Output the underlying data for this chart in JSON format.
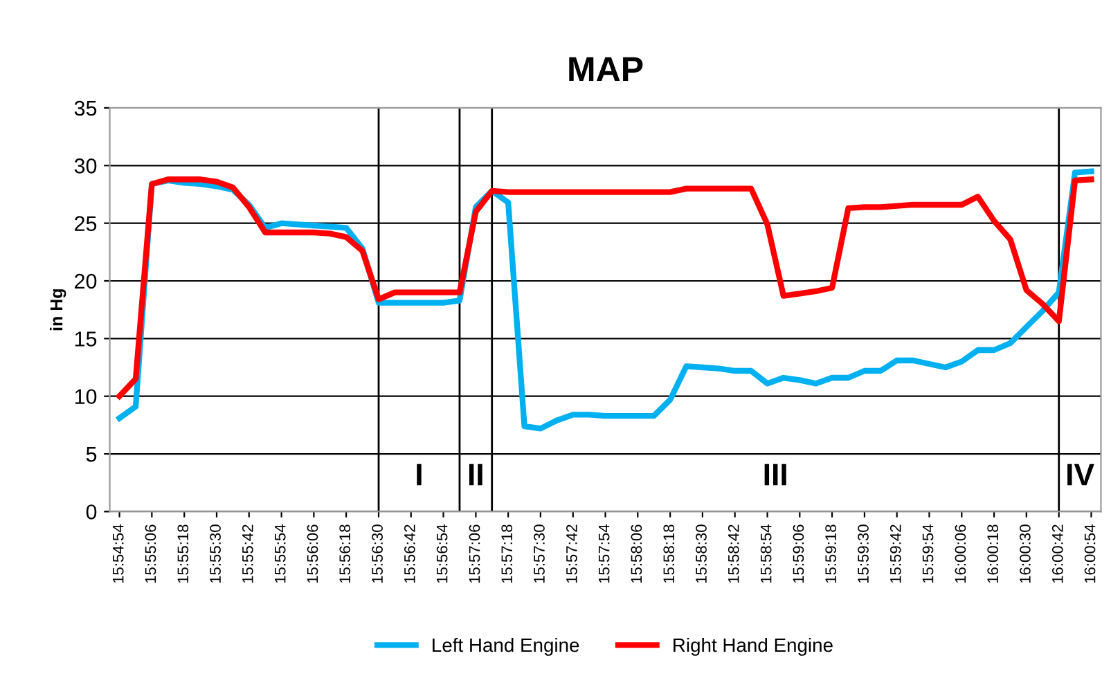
{
  "chart_data": {
    "type": "line",
    "title": "MAP",
    "ylabel": "in Hg",
    "x": [
      15.915,
      15.91667,
      15.91833,
      15.92,
      15.92167,
      15.92333,
      15.925,
      15.92667,
      15.92833,
      15.93,
      15.93167,
      15.93333,
      15.935,
      15.93667,
      15.93833,
      15.94,
      15.94167,
      15.94333,
      15.945,
      15.94667,
      15.94833,
      15.95,
      15.95167,
      15.95333,
      15.955,
      15.95667,
      15.95833,
      15.96,
      15.96167,
      15.96333,
      15.965,
      15.96667,
      15.96833,
      15.97,
      15.97167,
      15.97333,
      15.975,
      15.97667,
      15.97833,
      15.98,
      15.98167,
      15.98333,
      15.985,
      15.98667,
      15.98833,
      15.99,
      15.99167,
      15.99333,
      15.995,
      15.99667,
      15.99833,
      16.0,
      16.00167,
      16.00333,
      16.005,
      16.00667,
      16.00833,
      16.01,
      16.01167,
      16.01333,
      16.015
    ],
    "series": [
      {
        "name": "Left Hand Engine",
        "color": "#00b0f0",
        "values": [
          8.1,
          9.1,
          28.4,
          28.7,
          28.5,
          28.4,
          28.2,
          27.9,
          26.6,
          24.6,
          25.0,
          24.9,
          24.8,
          24.7,
          24.6,
          22.8,
          18.1,
          18.1,
          18.1,
          18.1,
          18.1,
          18.3,
          26.4,
          27.8,
          26.8,
          7.4,
          7.2,
          7.9,
          8.4,
          8.4,
          8.3,
          8.3,
          8.3,
          8.3,
          9.7,
          12.6,
          12.5,
          12.4,
          12.2,
          12.2,
          11.1,
          11.6,
          11.4,
          11.1,
          11.6,
          11.6,
          12.2,
          12.2,
          13.1,
          13.1,
          12.8,
          12.5,
          13.0,
          14.0,
          14.0,
          14.6,
          16.0,
          17.4,
          19.0,
          29.4,
          29.5
        ]
      },
      {
        "name": "Right Hand Engine",
        "color": "#ff0000",
        "values": [
          10.0,
          11.5,
          28.4,
          28.8,
          28.8,
          28.8,
          28.6,
          28.1,
          26.4,
          24.2,
          24.2,
          24.2,
          24.2,
          24.1,
          23.8,
          22.6,
          18.4,
          19.0,
          19.0,
          19.0,
          19.0,
          19.0,
          26.0,
          27.8,
          27.7,
          27.7,
          27.7,
          27.7,
          27.7,
          27.7,
          27.7,
          27.7,
          27.7,
          27.7,
          27.7,
          28.0,
          28.0,
          28.0,
          28.0,
          28.0,
          24.9,
          18.7,
          18.9,
          19.1,
          19.4,
          26.3,
          26.4,
          26.4,
          26.5,
          26.6,
          26.6,
          26.6,
          26.6,
          27.3,
          25.2,
          23.6,
          19.2,
          18.0,
          16.5,
          28.7,
          28.8
        ]
      }
    ],
    "xlim": [
      15.914,
      16.016
    ],
    "xticks": [
      {
        "value": 15.915,
        "label": "15:54:54"
      },
      {
        "value": 15.91833,
        "label": "15:55:06"
      },
      {
        "value": 15.92167,
        "label": "15:55:18"
      },
      {
        "value": 15.925,
        "label": "15:55:30"
      },
      {
        "value": 15.92833,
        "label": "15:55:42"
      },
      {
        "value": 15.93167,
        "label": "15:55:54"
      },
      {
        "value": 15.935,
        "label": "15:56:06"
      },
      {
        "value": 15.93833,
        "label": "15:56:18"
      },
      {
        "value": 15.94167,
        "label": "15:56:30"
      },
      {
        "value": 15.945,
        "label": "15:56:42"
      },
      {
        "value": 15.94833,
        "label": "15:56:54"
      },
      {
        "value": 15.95167,
        "label": "15:57:06"
      },
      {
        "value": 15.955,
        "label": "15:57:18"
      },
      {
        "value": 15.95833,
        "label": "15:57:30"
      },
      {
        "value": 15.96167,
        "label": "15:57:42"
      },
      {
        "value": 15.965,
        "label": "15:57:54"
      },
      {
        "value": 15.96833,
        "label": "15:58:06"
      },
      {
        "value": 15.97167,
        "label": "15:58:18"
      },
      {
        "value": 15.975,
        "label": "15:58:30"
      },
      {
        "value": 15.97833,
        "label": "15:58:42"
      },
      {
        "value": 15.98167,
        "label": "15:58:54"
      },
      {
        "value": 15.985,
        "label": "15:59:06"
      },
      {
        "value": 15.98833,
        "label": "15:59:18"
      },
      {
        "value": 15.99167,
        "label": "15:59:30"
      },
      {
        "value": 15.995,
        "label": "15:59:42"
      },
      {
        "value": 15.99833,
        "label": "15:59:54"
      },
      {
        "value": 16.00167,
        "label": "16:00:06"
      },
      {
        "value": 16.005,
        "label": "16:00:18"
      },
      {
        "value": 16.00833,
        "label": "16:00:30"
      },
      {
        "value": 16.01167,
        "label": "16:00:42"
      },
      {
        "value": 16.015,
        "label": "16:00:54"
      }
    ],
    "ylim": [
      0,
      35
    ],
    "yticks": [
      0,
      5,
      10,
      15,
      20,
      25,
      30,
      35
    ],
    "ref_lines": [
      {
        "axis": "x",
        "value": 15.94167,
        "color": "#000000"
      },
      {
        "axis": "x",
        "value": 15.95,
        "color": "#000000"
      },
      {
        "axis": "x",
        "value": 15.95333,
        "color": "#000000"
      },
      {
        "axis": "x",
        "value": 16.01167,
        "color": "#000000"
      }
    ],
    "annotations": [
      "I",
      "II",
      "III",
      "IV"
    ],
    "grid": "y",
    "legend": "bottom",
    "marker": "none",
    "line_style": "solid"
  }
}
